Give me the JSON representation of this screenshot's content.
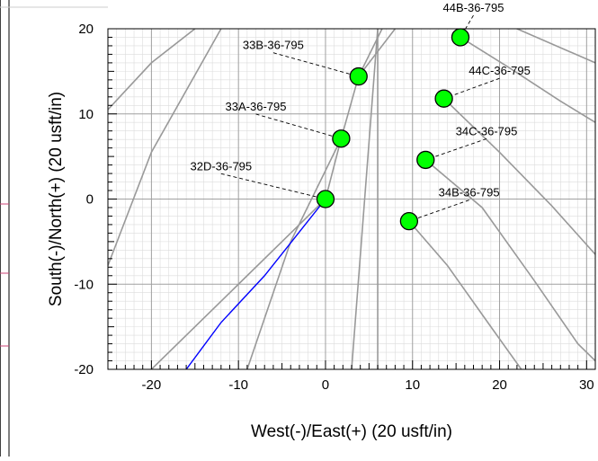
{
  "chart_data": {
    "type": "scatter",
    "xlabel": "West(-)/East(+) (20 usft/in)",
    "ylabel": "South(-)/North(+) (20 usft/in)",
    "xlim": [
      -25,
      31
    ],
    "ylim": [
      -20,
      20
    ],
    "x_ticks": [
      -20,
      -10,
      0,
      10,
      20,
      30
    ],
    "y_ticks": [
      -20,
      -10,
      0,
      10,
      20
    ],
    "x_tick_labels": [
      "-20",
      "-10",
      "0",
      "10",
      "20",
      "30"
    ],
    "y_tick_labels": [
      "-20",
      "-10",
      "0",
      "10",
      "20"
    ],
    "grid": true,
    "wells": [
      {
        "name": "44B-36-795",
        "x": 15.5,
        "y": 19.0,
        "label_pos": [
          17.0,
          22.0
        ]
      },
      {
        "name": "33B-36-795",
        "x": 3.8,
        "y": 14.4,
        "label_pos": [
          -6.0,
          17.6
        ]
      },
      {
        "name": "44C-36-795",
        "x": 13.6,
        "y": 11.8,
        "label_pos": [
          20.0,
          14.6
        ]
      },
      {
        "name": "33A-36-795",
        "x": 1.8,
        "y": 7.1,
        "label_pos": [
          -8.0,
          10.4
        ]
      },
      {
        "name": "34C-36-795",
        "x": 11.5,
        "y": 4.6,
        "label_pos": [
          18.5,
          7.5
        ]
      },
      {
        "name": "32D-36-795",
        "x": 0.0,
        "y": 0.0,
        "label_pos": [
          -12.0,
          3.4
        ]
      },
      {
        "name": "34B-36-795",
        "x": 9.6,
        "y": -2.6,
        "label_pos": [
          16.5,
          0.3
        ]
      }
    ],
    "offset_trajectories": [
      [
        [
          -25,
          -7.8
        ],
        [
          -20,
          5.5
        ],
        [
          -12,
          20
        ]
      ],
      [
        [
          -25,
          10.5
        ],
        [
          -20,
          16.0
        ],
        [
          -15,
          20
        ]
      ],
      [
        [
          -20,
          -20
        ],
        [
          -10,
          -10
        ],
        [
          0,
          0
        ],
        [
          1.8,
          7.1
        ],
        [
          3.8,
          14.4
        ],
        [
          8,
          20
        ]
      ],
      [
        [
          -9,
          -20
        ],
        [
          -4,
          -5
        ],
        [
          1.8,
          7.1
        ]
      ],
      [
        [
          3,
          -20
        ],
        [
          4.5,
          0
        ],
        [
          6,
          20
        ]
      ],
      [
        [
          6,
          -20
        ],
        [
          6,
          20
        ]
      ],
      [
        [
          3.8,
          14.4
        ],
        [
          6.5,
          20
        ]
      ],
      [
        [
          9.6,
          -2.6
        ],
        [
          14,
          -7.8
        ],
        [
          19,
          -15
        ],
        [
          22.5,
          -20
        ]
      ],
      [
        [
          11.5,
          4.6
        ],
        [
          18,
          -1
        ],
        [
          24,
          -9.6
        ],
        [
          29,
          -17
        ],
        [
          31,
          -19
        ]
      ],
      [
        [
          13.6,
          11.8
        ],
        [
          20,
          5.5
        ],
        [
          26,
          -0.8
        ],
        [
          31,
          -6.5
        ]
      ],
      [
        [
          15.5,
          19.0
        ],
        [
          21,
          15.5
        ],
        [
          27,
          11.5
        ],
        [
          31,
          9
        ]
      ],
      [
        [
          22,
          20
        ],
        [
          31,
          16
        ]
      ]
    ],
    "subject_trajectory": [
      [
        0,
        0
      ],
      [
        -3.5,
        -4.5
      ],
      [
        -7,
        -9
      ],
      [
        -12,
        -14.5
      ],
      [
        -16,
        -20
      ]
    ],
    "colors": {
      "marker_fill": "#00ff00",
      "marker_stroke": "#000000",
      "subject_line": "#0000ff",
      "offset_line": "#999999",
      "grid_major": "#a0a0a0",
      "grid_minor": "#dcdcdc"
    }
  }
}
